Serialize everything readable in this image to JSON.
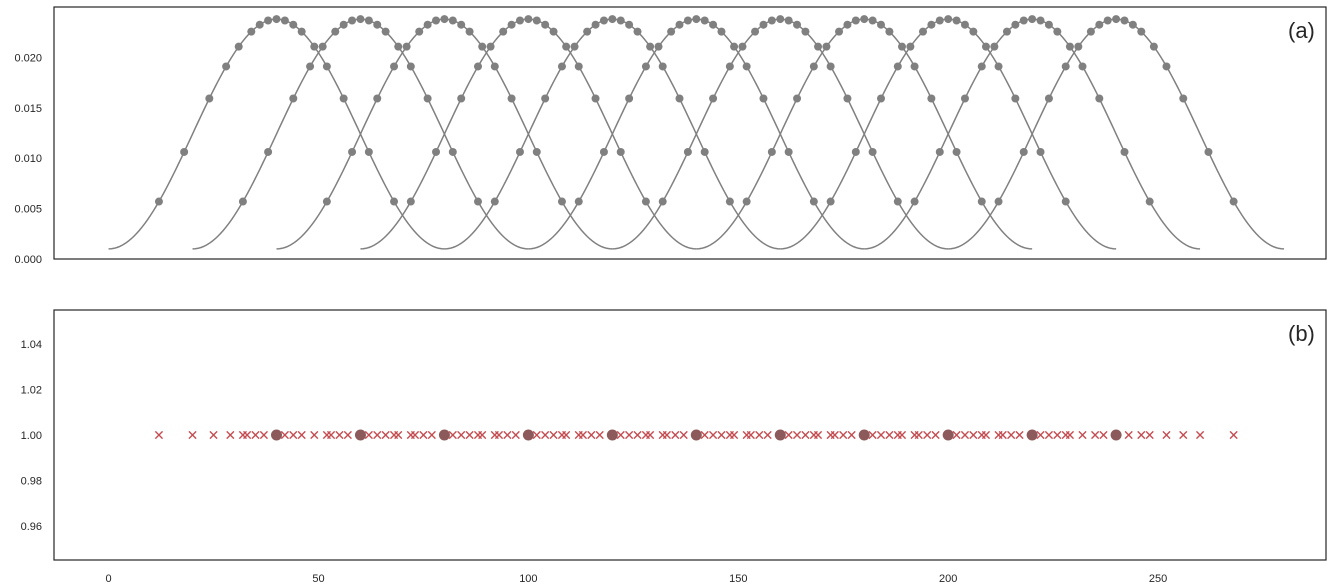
{
  "chart_data": [
    {
      "type": "line",
      "panel_label": "(a)",
      "xlim": [
        -13,
        290
      ],
      "ylim": [
        0.0,
        0.025
      ],
      "yticks": [
        0.0,
        0.005,
        0.01,
        0.015,
        0.02
      ],
      "ytick_labels": [
        "0.000",
        "0.005",
        "0.010",
        "0.015",
        "0.020"
      ],
      "grid": false,
      "line_color": "#808080",
      "marker_color": "#808080",
      "curves": [
        {
          "center": 40,
          "start": 0,
          "end": 80,
          "peak": 0.0238,
          "floor": 0.001
        },
        {
          "center": 60,
          "start": 20,
          "end": 100,
          "peak": 0.0238,
          "floor": 0.001
        },
        {
          "center": 80,
          "start": 40,
          "end": 120,
          "peak": 0.0238,
          "floor": 0.001
        },
        {
          "center": 100,
          "start": 60,
          "end": 140,
          "peak": 0.0238,
          "floor": 0.001
        },
        {
          "center": 120,
          "start": 80,
          "end": 160,
          "peak": 0.0238,
          "floor": 0.001
        },
        {
          "center": 140,
          "start": 100,
          "end": 180,
          "peak": 0.0238,
          "floor": 0.001
        },
        {
          "center": 160,
          "start": 120,
          "end": 200,
          "peak": 0.0238,
          "floor": 0.001
        },
        {
          "center": 180,
          "start": 140,
          "end": 220,
          "peak": 0.0238,
          "floor": 0.001
        },
        {
          "center": 200,
          "start": 160,
          "end": 240,
          "peak": 0.0238,
          "floor": 0.001
        },
        {
          "center": 220,
          "start": 180,
          "end": 260,
          "peak": 0.0238,
          "floor": 0.001
        },
        {
          "center": 240,
          "start": 200,
          "end": 280,
          "peak": 0.0238,
          "floor": 0.001
        }
      ],
      "marker_offsets": [
        -28,
        -22,
        -16,
        -12,
        -9,
        -6,
        -4,
        -2,
        0,
        2,
        4,
        6,
        9,
        12,
        16,
        22,
        28
      ]
    },
    {
      "type": "scatter",
      "panel_label": "(b)",
      "xlim": [
        -13,
        290
      ],
      "ylim": [
        0.945,
        1.055
      ],
      "yticks": [
        0.96,
        0.98,
        1.0,
        1.02,
        1.04
      ],
      "ytick_labels": [
        "0.96",
        "0.98",
        "1.00",
        "1.02",
        "1.04"
      ],
      "xticks": [
        0,
        50,
        100,
        150,
        200,
        250
      ],
      "xtick_labels": [
        "0",
        "50",
        "100",
        "150",
        "200",
        "250"
      ],
      "grid": false,
      "series": [
        {
          "marker": "x",
          "color": "#c44e52",
          "x": [
            12,
            20,
            25,
            29,
            32,
            33,
            35,
            37,
            40,
            42,
            44,
            46,
            49,
            52,
            53,
            55,
            57,
            60,
            62,
            64,
            66,
            68,
            69,
            72,
            73,
            75,
            77,
            80,
            82,
            84,
            86,
            88,
            89,
            92,
            93,
            95,
            97,
            100,
            102,
            104,
            106,
            108,
            109,
            112,
            113,
            115,
            117,
            120,
            122,
            124,
            126,
            128,
            129,
            132,
            133,
            135,
            137,
            140,
            142,
            144,
            146,
            148,
            149,
            152,
            153,
            155,
            157,
            160,
            162,
            164,
            166,
            168,
            169,
            172,
            173,
            175,
            177,
            180,
            182,
            184,
            186,
            188,
            189,
            192,
            193,
            195,
            197,
            200,
            202,
            204,
            206,
            208,
            209,
            212,
            213,
            215,
            217,
            220,
            222,
            224,
            226,
            228,
            229,
            232,
            235,
            237,
            240,
            243,
            246,
            248,
            252,
            256,
            260,
            268
          ],
          "y_value": 1.0
        },
        {
          "marker": "o",
          "color": "#8c5a5a",
          "x": [
            40,
            60,
            80,
            100,
            120,
            140,
            160,
            180,
            200,
            220,
            240
          ],
          "y_value": 1.0
        }
      ]
    }
  ]
}
